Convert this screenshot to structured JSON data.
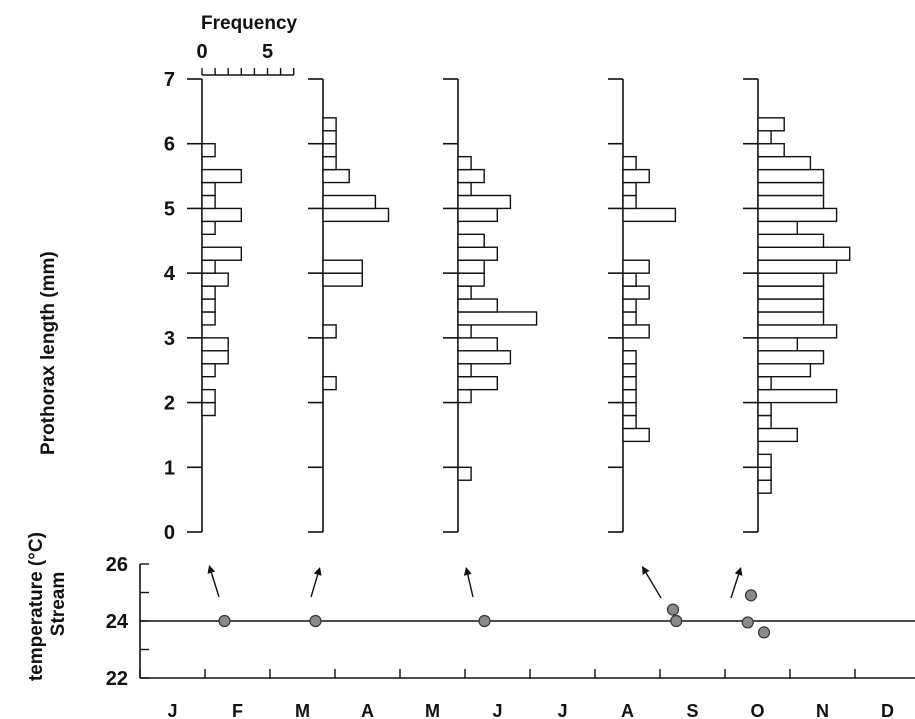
{
  "chart_data": [
    {
      "type": "bar",
      "orientation": "horizontal",
      "panels": 5,
      "top_label": "Frequency",
      "x_ticks": [
        "0",
        "5"
      ],
      "xlim": [
        0,
        7
      ],
      "ylabel": "Prothorax length (mm)",
      "y_ticks": [
        "0",
        "1",
        "2",
        "3",
        "4",
        "5",
        "6",
        "7"
      ],
      "ylim": [
        0,
        7
      ],
      "bin_width_mm": 0.2,
      "series": [
        {
          "sample_month": "Feb",
          "bins": [
            [
              1.8,
              1
            ],
            [
              2.0,
              1
            ],
            [
              2.4,
              1
            ],
            [
              2.6,
              2
            ],
            [
              2.8,
              2
            ],
            [
              3.2,
              1
            ],
            [
              3.4,
              1
            ],
            [
              3.6,
              1
            ],
            [
              3.8,
              2
            ],
            [
              4.0,
              1
            ],
            [
              4.2,
              3
            ],
            [
              4.6,
              1
            ],
            [
              4.8,
              3
            ],
            [
              5.0,
              1
            ],
            [
              5.2,
              1
            ],
            [
              5.4,
              3
            ],
            [
              5.8,
              1
            ]
          ]
        },
        {
          "sample_month": "Mar",
          "bins": [
            [
              2.2,
              1
            ],
            [
              3.0,
              1
            ],
            [
              3.8,
              3
            ],
            [
              4.0,
              3
            ],
            [
              4.8,
              5
            ],
            [
              5.0,
              4
            ],
            [
              5.4,
              2
            ],
            [
              5.6,
              1
            ],
            [
              5.8,
              1
            ],
            [
              6.0,
              1
            ],
            [
              6.2,
              1
            ]
          ]
        },
        {
          "sample_month": "Jun",
          "bins": [
            [
              0.8,
              1
            ],
            [
              2.0,
              1
            ],
            [
              2.2,
              3
            ],
            [
              2.4,
              1
            ],
            [
              2.6,
              4
            ],
            [
              2.8,
              3
            ],
            [
              3.0,
              1
            ],
            [
              3.2,
              6
            ],
            [
              3.4,
              3
            ],
            [
              3.6,
              1
            ],
            [
              3.8,
              2
            ],
            [
              4.0,
              2
            ],
            [
              4.2,
              3
            ],
            [
              4.4,
              2
            ],
            [
              4.8,
              3
            ],
            [
              5.0,
              4
            ],
            [
              5.2,
              1
            ],
            [
              5.4,
              2
            ],
            [
              5.6,
              1
            ]
          ]
        },
        {
          "sample_month": "Sep",
          "bins": [
            [
              1.4,
              2
            ],
            [
              1.6,
              1
            ],
            [
              1.8,
              1
            ],
            [
              2.0,
              1
            ],
            [
              2.2,
              1
            ],
            [
              2.4,
              1
            ],
            [
              2.6,
              1
            ],
            [
              3.0,
              2
            ],
            [
              3.2,
              1
            ],
            [
              3.4,
              1
            ],
            [
              3.6,
              2
            ],
            [
              3.8,
              1
            ],
            [
              4.0,
              2
            ],
            [
              4.8,
              4
            ],
            [
              5.0,
              1
            ],
            [
              5.2,
              1
            ],
            [
              5.4,
              2
            ],
            [
              5.6,
              1
            ]
          ]
        },
        {
          "sample_month": "Oct",
          "bins": [
            [
              0.6,
              1
            ],
            [
              0.8,
              1
            ],
            [
              1.0,
              1
            ],
            [
              1.4,
              3
            ],
            [
              1.6,
              1
            ],
            [
              1.8,
              1
            ],
            [
              2.0,
              6
            ],
            [
              2.2,
              1
            ],
            [
              2.4,
              4
            ],
            [
              2.6,
              5
            ],
            [
              2.8,
              3
            ],
            [
              3.0,
              6
            ],
            [
              3.2,
              5
            ],
            [
              3.4,
              5
            ],
            [
              3.6,
              5
            ],
            [
              3.8,
              5
            ],
            [
              4.0,
              6
            ],
            [
              4.2,
              7
            ],
            [
              4.4,
              5
            ],
            [
              4.6,
              3
            ],
            [
              4.8,
              6
            ],
            [
              5.0,
              5
            ],
            [
              5.2,
              5
            ],
            [
              5.4,
              5
            ],
            [
              5.6,
              4
            ],
            [
              5.8,
              2
            ],
            [
              6.0,
              1
            ],
            [
              6.2,
              2
            ]
          ]
        }
      ]
    },
    {
      "type": "scatter",
      "ylabel": "Stream temperature (°C)",
      "y_ticks": [
        "22",
        "24",
        "26"
      ],
      "ylim": [
        22,
        26
      ],
      "x_ticks": [
        "J",
        "F",
        "M",
        "A",
        "M",
        "J",
        "J",
        "A",
        "S",
        "O",
        "N",
        "D"
      ],
      "xlim": [
        0,
        12
      ],
      "mean_line": 24,
      "points": [
        [
          1.3,
          24.0
        ],
        [
          2.7,
          24.0
        ],
        [
          5.3,
          24.0
        ],
        [
          8.2,
          24.4
        ],
        [
          8.25,
          24.0
        ],
        [
          9.4,
          24.9
        ],
        [
          9.35,
          23.95
        ],
        [
          9.6,
          23.6
        ]
      ],
      "arrows": [
        "Feb",
        "Mar",
        "Jun",
        "Sep",
        "Oct"
      ]
    }
  ]
}
